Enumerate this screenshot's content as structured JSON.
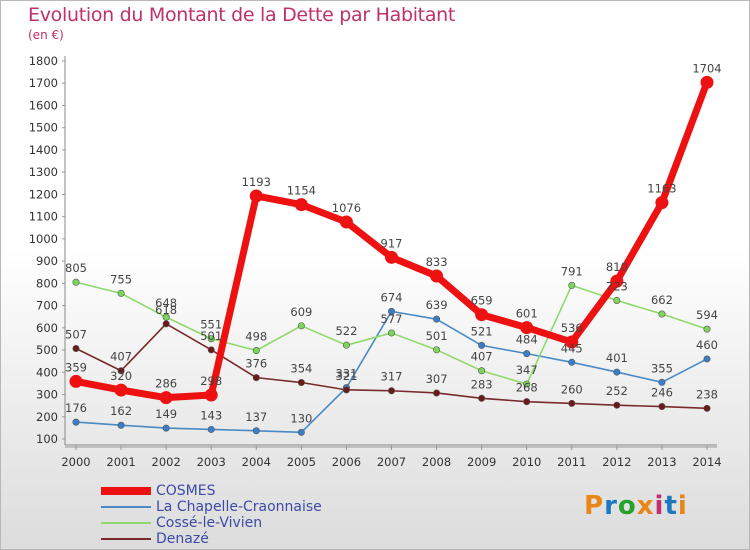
{
  "title": "Evolution du Montant de la Dette par Habitant",
  "unit": "(en €)",
  "brand": {
    "text": "Proxiti",
    "colors": [
      "#e8861a",
      "#1c78c0",
      "#27a12f",
      "#e8861a",
      "#c0306a",
      "#1c78c0",
      "#e8861a"
    ]
  },
  "chart_data": {
    "type": "line",
    "title": "Evolution du Montant de la Dette par Habitant",
    "ylabel": "(en €)",
    "xlabel": "",
    "ylim": [
      100,
      1800
    ],
    "y_ticks": [
      100,
      200,
      300,
      400,
      500,
      600,
      700,
      800,
      900,
      1000,
      1100,
      1200,
      1300,
      1400,
      1500,
      1600,
      1700,
      1800
    ],
    "grid": false,
    "legend_position": "bottom-left",
    "x": [
      "2000",
      "2001",
      "2002",
      "2003",
      "2004",
      "2005",
      "2006",
      "2007",
      "2008",
      "2009",
      "2010",
      "2011",
      "2012",
      "2013",
      "2014"
    ],
    "series": [
      {
        "name": "La Chapelle-Craonnaise",
        "color": "#4a8ac4",
        "marker": "#3a7ec9",
        "values": [
          176,
          162,
          149,
          143,
          137,
          130,
          331,
          674,
          639,
          521,
          484,
          445,
          401,
          355,
          460
        ]
      },
      {
        "name": "Cossé-le-Vivien",
        "color": "#8ed96c",
        "marker": "#7bd65a",
        "values": [
          805,
          755,
          648,
          551,
          498,
          609,
          522,
          577,
          501,
          407,
          347,
          791,
          723,
          662,
          594
        ]
      },
      {
        "name": "Denazé",
        "color": "#7a2a2a",
        "marker": "#6a1a1a",
        "values": [
          507,
          407,
          618,
          501,
          376,
          354,
          321,
          317,
          307,
          283,
          268,
          260,
          252,
          246,
          238
        ]
      },
      {
        "name": "COSMES",
        "color": "#ee1111",
        "marker": "#ee1111",
        "values": [
          359,
          320,
          286,
          298,
          1193,
          1154,
          1076,
          917,
          833,
          659,
          601,
          536,
          810,
          1163,
          1704
        ]
      }
    ]
  }
}
